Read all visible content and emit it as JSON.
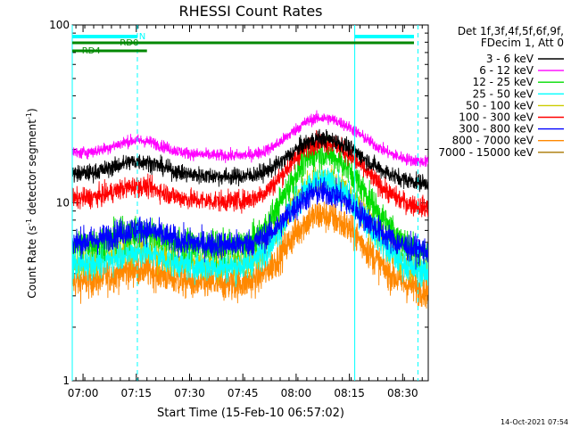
{
  "chart_data": {
    "type": "line",
    "title": "RHESSI Count Rates",
    "xlabel": "Start Time (15-Feb-10 06:57:02)",
    "ylabel_main": "Count Rate (s",
    "ylabel_sup": "-1",
    "ylabel_mid": " detector segment",
    "ylabel_end": ")",
    "yscale": "log",
    "ylim": [
      1,
      100
    ],
    "xlim_minutes": [
      -3.03,
      97.2
    ],
    "y_ticks": [
      "1",
      "10",
      "100"
    ],
    "x_ticks": [
      {
        "t": 0,
        "label": "07:00"
      },
      {
        "t": 15,
        "label": "07:15"
      },
      {
        "t": 30,
        "label": "07:30"
      },
      {
        "t": 45,
        "label": "07:45"
      },
      {
        "t": 60,
        "label": "08:00"
      },
      {
        "t": 75,
        "label": "08:15"
      },
      {
        "t": 90,
        "label": "08:30"
      }
    ],
    "legend_header": [
      "Det 1f,3f,4f,5f,6f,9f,",
      "FDecim 1, Att 0"
    ],
    "series": [
      {
        "name": "3 - 6 keV",
        "color": "#000000",
        "baseline": 14.5,
        "peak": 23,
        "noise": 0.05
      },
      {
        "name": "6 - 12 keV",
        "color": "#ff00ff",
        "baseline": 19,
        "peak": 30,
        "noise": 0.035
      },
      {
        "name": "12 - 25 keV",
        "color": "#00dd00",
        "baseline": 5.8,
        "peak": 19,
        "noise": 0.09
      },
      {
        "name": "25 - 50 keV",
        "color": "#00ffff",
        "baseline": 4.5,
        "peak": 13,
        "noise": 0.09
      },
      {
        "name": "50 - 100 keV",
        "color": "#cccc00",
        "baseline": 4.6,
        "peak": 13.5,
        "noise": 0.09
      },
      {
        "name": "100 - 300 keV",
        "color": "#ff0000",
        "baseline": 10.5,
        "peak": 22,
        "noise": 0.06
      },
      {
        "name": "300 - 800 keV",
        "color": "#0000ff",
        "baseline": 6.0,
        "peak": 11.5,
        "noise": 0.08
      },
      {
        "name": "800 - 7000 keV",
        "color": "#ff8800",
        "baseline": 3.6,
        "peak": 8.5,
        "noise": 0.1
      },
      {
        "name": "7000 - 15000 keV",
        "color": "#aa7700",
        "baseline": null,
        "peak": null,
        "noise": 0
      }
    ],
    "bump_center_minutes": 15.5,
    "bump_factor": 1.18,
    "flare_peak_minutes": 67,
    "attenuator_marks": [
      {
        "label": "N",
        "color": "#00ffff"
      },
      {
        "label": "RD0",
        "color": "#008800"
      },
      {
        "label": "RD4",
        "color": "#008800"
      }
    ],
    "vertical_lines": [
      {
        "t": -3.03,
        "style": "solid",
        "color": "#00ffff"
      },
      {
        "t": 15.3,
        "style": "dashed",
        "color": "#00ffff"
      },
      {
        "t": 76.5,
        "style": "solid",
        "color": "#00ffff"
      },
      {
        "t": 94.3,
        "style": "dashed",
        "color": "#00ffff"
      }
    ],
    "footer_date": "14-Oct-2021 07:54"
  }
}
